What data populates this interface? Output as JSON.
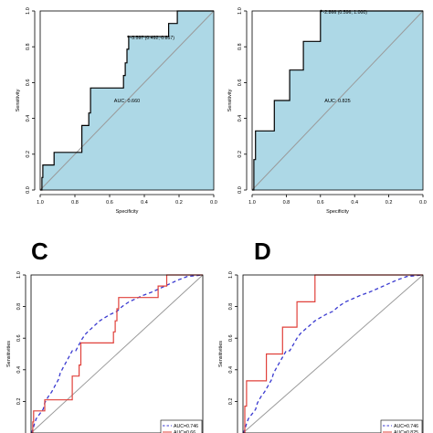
{
  "chart_data": [
    {
      "panel": "A",
      "panel_label": "",
      "type": "line",
      "subtype": "roc",
      "xlabel": "Specificity",
      "ylabel": "Sensitivity",
      "xlim": [
        1.0,
        0.0
      ],
      "ylim": [
        0.0,
        1.0
      ],
      "xticks": [
        "1.0",
        "0.8",
        "0.6",
        "0.4",
        "0.2",
        "0.0"
      ],
      "yticks": [
        "0.0",
        "0.2",
        "0.4",
        "0.6",
        "0.8",
        "1.0"
      ],
      "auc_text": "AUC: 0.660",
      "threshold_text": "-3.597 (0.492, 0.857)",
      "threshold_point": [
        0.492,
        0.857
      ],
      "fill_color": "#add8e6",
      "series": [
        {
          "color": "#000000",
          "style": "solid",
          "points": [
            [
              1.0,
              0.0
            ],
            [
              0.99,
              0.0
            ],
            [
              0.99,
              0.07
            ],
            [
              0.985,
              0.07
            ],
            [
              0.985,
              0.14
            ],
            [
              0.92,
              0.14
            ],
            [
              0.92,
              0.21
            ],
            [
              0.76,
              0.21
            ],
            [
              0.76,
              0.36
            ],
            [
              0.72,
              0.36
            ],
            [
              0.72,
              0.43
            ],
            [
              0.71,
              0.43
            ],
            [
              0.71,
              0.57
            ],
            [
              0.52,
              0.57
            ],
            [
              0.52,
              0.64
            ],
            [
              0.51,
              0.64
            ],
            [
              0.51,
              0.71
            ],
            [
              0.5,
              0.71
            ],
            [
              0.5,
              0.786
            ],
            [
              0.49,
              0.786
            ],
            [
              0.49,
              0.857
            ],
            [
              0.26,
              0.857
            ],
            [
              0.26,
              0.93
            ],
            [
              0.21,
              0.93
            ],
            [
              0.21,
              1.0
            ],
            [
              0.0,
              1.0
            ]
          ]
        }
      ]
    },
    {
      "panel": "B",
      "panel_label": "",
      "type": "line",
      "subtype": "roc",
      "xlabel": "Specificity",
      "ylabel": "Sensitivity",
      "xlim": [
        1.0,
        0.0
      ],
      "ylim": [
        0.0,
        1.0
      ],
      "xticks": [
        "1.0",
        "0.8",
        "0.6",
        "0.4",
        "0.2",
        "0.0"
      ],
      "yticks": [
        "0.0",
        "0.2",
        "0.4",
        "0.6",
        "0.8",
        "1.0"
      ],
      "auc_text": "AUC: 0.825",
      "threshold_text": "-2.866 (0.596, 1.000)",
      "threshold_point": [
        0.596,
        1.0
      ],
      "fill_color": "#add8e6",
      "series": [
        {
          "color": "#000000",
          "style": "solid",
          "points": [
            [
              1.0,
              0.0
            ],
            [
              0.99,
              0.0
            ],
            [
              0.99,
              0.17
            ],
            [
              0.98,
              0.17
            ],
            [
              0.98,
              0.33
            ],
            [
              0.87,
              0.33
            ],
            [
              0.87,
              0.5
            ],
            [
              0.78,
              0.5
            ],
            [
              0.78,
              0.67
            ],
            [
              0.7,
              0.67
            ],
            [
              0.7,
              0.83
            ],
            [
              0.6,
              0.83
            ],
            [
              0.6,
              1.0
            ],
            [
              0.0,
              1.0
            ]
          ]
        }
      ]
    },
    {
      "panel": "C",
      "panel_label": "C",
      "type": "line",
      "subtype": "roc",
      "xlabel": "",
      "ylabel": "Sensitivities",
      "xlim": [
        1.0,
        0.0
      ],
      "ylim": [
        0.0,
        1.0
      ],
      "xticks": [],
      "yticks": [
        "0.0",
        "0.2",
        "0.4",
        "0.6",
        "0.8",
        "1.0"
      ],
      "legend": [
        "AUC=0.746",
        "AUC=0.66"
      ],
      "legend_position": "bottom-right",
      "series": [
        {
          "name": "AUC=0.746",
          "color": "#3a3ad0",
          "style": "dashed",
          "points": [
            [
              1.0,
              0.0
            ],
            [
              0.99,
              0.02
            ],
            [
              0.98,
              0.06
            ],
            [
              0.97,
              0.09
            ],
            [
              0.95,
              0.12
            ],
            [
              0.93,
              0.15
            ],
            [
              0.92,
              0.19
            ],
            [
              0.9,
              0.23
            ],
            [
              0.88,
              0.26
            ],
            [
              0.86,
              0.3
            ],
            [
              0.84,
              0.34
            ],
            [
              0.83,
              0.38
            ],
            [
              0.81,
              0.42
            ],
            [
              0.79,
              0.46
            ],
            [
              0.77,
              0.5
            ],
            [
              0.76,
              0.52
            ],
            [
              0.74,
              0.52
            ],
            [
              0.72,
              0.56
            ],
            [
              0.7,
              0.6
            ],
            [
              0.68,
              0.63
            ],
            [
              0.65,
              0.66
            ],
            [
              0.62,
              0.69
            ],
            [
              0.6,
              0.71
            ],
            [
              0.57,
              0.73
            ],
            [
              0.54,
              0.75
            ],
            [
              0.5,
              0.77
            ],
            [
              0.47,
              0.8
            ],
            [
              0.43,
              0.83
            ],
            [
              0.39,
              0.85
            ],
            [
              0.35,
              0.87
            ],
            [
              0.3,
              0.89
            ],
            [
              0.26,
              0.91
            ],
            [
              0.22,
              0.93
            ],
            [
              0.18,
              0.95
            ],
            [
              0.14,
              0.97
            ],
            [
              0.09,
              0.99
            ],
            [
              0.0,
              1.0
            ]
          ]
        },
        {
          "name": "AUC=0.66",
          "color": "#e0403a",
          "style": "solid",
          "points": [
            [
              1.0,
              0.0
            ],
            [
              0.99,
              0.0
            ],
            [
              0.99,
              0.07
            ],
            [
              0.985,
              0.07
            ],
            [
              0.985,
              0.14
            ],
            [
              0.92,
              0.14
            ],
            [
              0.92,
              0.21
            ],
            [
              0.76,
              0.21
            ],
            [
              0.76,
              0.36
            ],
            [
              0.72,
              0.36
            ],
            [
              0.72,
              0.43
            ],
            [
              0.71,
              0.43
            ],
            [
              0.71,
              0.57
            ],
            [
              0.52,
              0.57
            ],
            [
              0.52,
              0.64
            ],
            [
              0.51,
              0.64
            ],
            [
              0.51,
              0.71
            ],
            [
              0.5,
              0.71
            ],
            [
              0.5,
              0.786
            ],
            [
              0.49,
              0.786
            ],
            [
              0.49,
              0.857
            ],
            [
              0.26,
              0.857
            ],
            [
              0.26,
              0.93
            ],
            [
              0.21,
              0.93
            ],
            [
              0.21,
              1.0
            ],
            [
              0.0,
              1.0
            ]
          ]
        }
      ]
    },
    {
      "panel": "D",
      "panel_label": "D",
      "type": "line",
      "subtype": "roc",
      "xlabel": "",
      "ylabel": "Sensitivities",
      "xlim": [
        1.0,
        0.0
      ],
      "ylim": [
        0.0,
        1.0
      ],
      "xticks": [],
      "yticks": [
        "0.0",
        "0.2",
        "0.4",
        "0.6",
        "0.8",
        "1.0"
      ],
      "legend": [
        "AUC=0.746",
        "AUC=0.825"
      ],
      "legend_position": "bottom-right",
      "series": [
        {
          "name": "AUC=0.746",
          "color": "#3a3ad0",
          "style": "dashed",
          "points": [
            [
              1.0,
              0.0
            ],
            [
              0.99,
              0.02
            ],
            [
              0.98,
              0.06
            ],
            [
              0.97,
              0.09
            ],
            [
              0.95,
              0.12
            ],
            [
              0.93,
              0.15
            ],
            [
              0.92,
              0.19
            ],
            [
              0.9,
              0.23
            ],
            [
              0.88,
              0.26
            ],
            [
              0.86,
              0.3
            ],
            [
              0.84,
              0.34
            ],
            [
              0.83,
              0.38
            ],
            [
              0.81,
              0.42
            ],
            [
              0.79,
              0.46
            ],
            [
              0.77,
              0.5
            ],
            [
              0.76,
              0.52
            ],
            [
              0.74,
              0.52
            ],
            [
              0.72,
              0.56
            ],
            [
              0.7,
              0.6
            ],
            [
              0.68,
              0.63
            ],
            [
              0.65,
              0.66
            ],
            [
              0.62,
              0.69
            ],
            [
              0.6,
              0.71
            ],
            [
              0.57,
              0.73
            ],
            [
              0.54,
              0.75
            ],
            [
              0.5,
              0.77
            ],
            [
              0.47,
              0.8
            ],
            [
              0.43,
              0.83
            ],
            [
              0.39,
              0.85
            ],
            [
              0.35,
              0.87
            ],
            [
              0.3,
              0.89
            ],
            [
              0.26,
              0.91
            ],
            [
              0.22,
              0.93
            ],
            [
              0.18,
              0.95
            ],
            [
              0.14,
              0.97
            ],
            [
              0.09,
              0.99
            ],
            [
              0.0,
              1.0
            ]
          ]
        },
        {
          "name": "AUC=0.825",
          "color": "#e0403a",
          "style": "solid",
          "points": [
            [
              1.0,
              0.0
            ],
            [
              0.99,
              0.0
            ],
            [
              0.99,
              0.17
            ],
            [
              0.98,
              0.17
            ],
            [
              0.98,
              0.33
            ],
            [
              0.87,
              0.33
            ],
            [
              0.87,
              0.5
            ],
            [
              0.78,
              0.5
            ],
            [
              0.78,
              0.67
            ],
            [
              0.7,
              0.67
            ],
            [
              0.7,
              0.83
            ],
            [
              0.6,
              0.83
            ],
            [
              0.6,
              1.0
            ],
            [
              0.0,
              1.0
            ]
          ]
        }
      ]
    }
  ]
}
